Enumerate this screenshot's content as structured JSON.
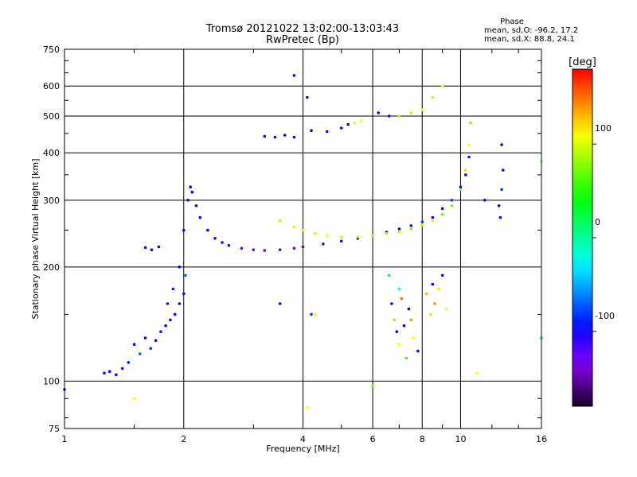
{
  "chart_data": {
    "type": "scatter",
    "title": "Tromsø 20121022 13:02:00-13:03:43",
    "subtitle": "RwPretec (Bp)",
    "xlabel": "Frequency [MHz]",
    "ylabel": "Stationary phase Virtual Height [km]",
    "x_scale": "log",
    "y_scale": "log",
    "xlim": [
      1,
      16
    ],
    "ylim": [
      75,
      750
    ],
    "x_ticks": [
      1,
      2,
      4,
      6,
      8,
      10,
      16
    ],
    "x_tick_labels": [
      "1",
      "2",
      "4",
      "6",
      "8",
      "10",
      "16"
    ],
    "y_ticks": [
      75,
      100,
      200,
      300,
      400,
      500,
      600,
      750
    ],
    "y_tick_labels": [
      "75",
      "100",
      "200",
      "300",
      "400",
      "500",
      "600",
      "750"
    ],
    "grid": true,
    "phase_stats": {
      "heading": "Phase",
      "line_o": "mean, sd,O: -96.2, 17.2",
      "line_x": "mean, sd,X:  88.8, 24.1"
    },
    "colorbar": {
      "label": "[deg]",
      "range": [
        -180,
        180
      ],
      "ticks": [
        -100,
        0,
        100
      ],
      "tick_labels": [
        "-100",
        "0",
        "100"
      ]
    },
    "series": [
      {
        "trace": "low-frequency scatter",
        "x": [
          1.0,
          1.26,
          1.3,
          1.35,
          1.4,
          1.45,
          1.5,
          1.55,
          1.6,
          1.65,
          1.7,
          1.75,
          1.8,
          1.85,
          1.9,
          1.95,
          2.0,
          2.02,
          1.6,
          1.66,
          1.73,
          1.82,
          1.88,
          1.95
        ],
        "y": [
          95,
          105,
          106,
          104,
          108,
          112,
          125,
          118,
          130,
          122,
          128,
          135,
          140,
          145,
          150,
          160,
          170,
          190,
          225,
          222,
          226,
          160,
          175,
          200
        ],
        "phase": [
          -100,
          -100,
          -105,
          -95,
          -100,
          -90,
          -100,
          -70,
          -100,
          -80,
          -100,
          -90,
          -100,
          -95,
          -100,
          -100,
          -100,
          -70,
          -100,
          -100,
          -100,
          -100,
          -90,
          -100
        ]
      },
      {
        "trace": "O-mode trace",
        "x": [
          2.0,
          2.05,
          2.08,
          2.1,
          2.15,
          2.2,
          2.3,
          2.4,
          2.5,
          2.6,
          2.8,
          3.0,
          3.2,
          3.5,
          3.8,
          4.0,
          4.5,
          5.0,
          5.5,
          6.0,
          6.5,
          7.0,
          7.5,
          8.0,
          8.5,
          9.0,
          9.5,
          10.0,
          10.3,
          10.5
        ],
        "y": [
          250,
          300,
          325,
          315,
          290,
          270,
          250,
          238,
          232,
          228,
          224,
          222,
          221,
          222,
          224,
          226,
          230,
          234,
          238,
          242,
          247,
          252,
          257,
          263,
          270,
          285,
          300,
          325,
          350,
          390
        ],
        "phase": [
          -100,
          -100,
          -100,
          -95,
          -100,
          -100,
          -100,
          -105,
          -110,
          -110,
          -120,
          -130,
          -130,
          -125,
          -120,
          -115,
          -110,
          -105,
          -100,
          -95,
          -100,
          -95,
          -90,
          -80,
          -100,
          -95,
          -80,
          -100,
          -100,
          -90
        ]
      },
      {
        "trace": "X-mode trace",
        "x": [
          3.5,
          3.8,
          4.0,
          4.3,
          4.6,
          5.0,
          5.5,
          6.0,
          6.5,
          7.0,
          7.5,
          8.0,
          8.5,
          9.0,
          9.5,
          10.0,
          10.3,
          10.5,
          10.6
        ],
        "y": [
          265,
          255,
          250,
          245,
          242,
          240,
          240,
          242,
          245,
          248,
          252,
          258,
          265,
          275,
          290,
          320,
          360,
          420,
          480
        ],
        "phase": [
          90,
          100,
          105,
          95,
          110,
          100,
          95,
          100,
          90,
          85,
          80,
          95,
          100,
          70,
          75,
          80,
          120,
          110,
          130
        ]
      },
      {
        "trace": "F2 multiple echoes",
        "x": [
          3.2,
          3.4,
          3.6,
          3.8,
          4.2,
          4.6,
          5.0,
          5.2,
          5.4,
          5.6,
          6.2,
          6.6,
          7.0,
          7.5,
          8.0,
          8.5,
          9.0
        ],
        "y": [
          442,
          440,
          445,
          440,
          458,
          455,
          465,
          475,
          480,
          485,
          510,
          500,
          500,
          510,
          520,
          560,
          600
        ],
        "phase": [
          -100,
          -100,
          -100,
          -100,
          -100,
          -100,
          -100,
          -100,
          100,
          110,
          -100,
          -100,
          90,
          95,
          100,
          120,
          110
        ]
      },
      {
        "trace": "scattered echoes",
        "x": [
          3.8,
          4.1,
          4.2,
          4.3,
          6.0,
          6.6,
          6.7,
          6.8,
          6.9,
          7.0,
          7.0,
          7.1,
          7.2,
          7.3,
          7.4,
          7.5,
          7.6,
          7.8,
          8.2,
          8.4,
          8.5,
          8.6,
          8.8,
          9.0,
          9.2,
          11.5,
          12.5,
          12.6,
          12.7,
          12.8,
          12.7,
          16.0,
          16.0,
          11.0,
          1.5,
          4.1,
          3.5
        ],
        "y": [
          640,
          560,
          150,
          150,
          97,
          190,
          160,
          145,
          135,
          125,
          175,
          165,
          140,
          115,
          155,
          145,
          130,
          120,
          170,
          150,
          180,
          160,
          175,
          190,
          155,
          300,
          290,
          270,
          320,
          360,
          420,
          380,
          130,
          105,
          90,
          85,
          160
        ],
        "phase": [
          -100,
          -100,
          -80,
          110,
          70,
          20,
          -100,
          80,
          -100,
          110,
          -20,
          150,
          -100,
          60,
          -100,
          140,
          110,
          -100,
          130,
          120,
          -100,
          140,
          100,
          -100,
          110,
          -100,
          -100,
          -100,
          -80,
          -100,
          -100,
          80,
          20,
          110,
          110,
          110,
          -100
        ]
      }
    ]
  }
}
